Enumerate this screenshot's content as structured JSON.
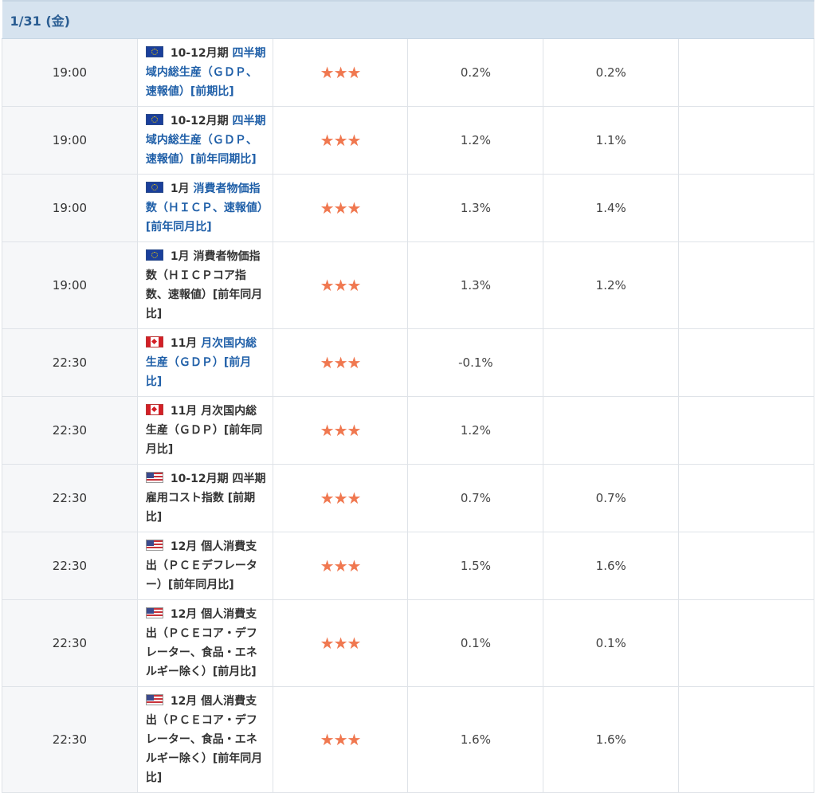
{
  "date_header": "1/31 (金)",
  "importance": "★★★",
  "rows": [
    {
      "time": "19:00",
      "flag": "eu",
      "period": "10-12月期",
      "title": "四半期域内総生産（ＧＤＰ、速報値）[前期比]",
      "linked": true,
      "actual": "0.2%",
      "forecast": "0.2%"
    },
    {
      "time": "19:00",
      "flag": "eu",
      "period": "10-12月期",
      "title": "四半期域内総生産（ＧＤＰ、速報値）[前年同期比]",
      "linked": true,
      "actual": "1.2%",
      "forecast": "1.1%"
    },
    {
      "time": "19:00",
      "flag": "eu",
      "period": "1月",
      "title": "消費者物価指数（ＨＩＣＰ、速報値）[前年同月比]",
      "linked": true,
      "actual": "1.3%",
      "forecast": "1.4%"
    },
    {
      "time": "19:00",
      "flag": "eu",
      "period": "1月",
      "title": "消費者物価指数（ＨＩＣＰコア指数、速報値）[前年同月比]",
      "linked": false,
      "actual": "1.3%",
      "forecast": "1.2%"
    },
    {
      "time": "22:30",
      "flag": "ca",
      "period": "11月",
      "title": "月次国内総生産（ＧＤＰ）[前月比]",
      "linked": true,
      "actual": "-0.1%",
      "forecast": ""
    },
    {
      "time": "22:30",
      "flag": "ca",
      "period": "11月",
      "title": "月次国内総生産（ＧＤＰ）[前年同月比]",
      "linked": false,
      "actual": "1.2%",
      "forecast": ""
    },
    {
      "time": "22:30",
      "flag": "us",
      "period": "10-12月期",
      "title": "四半期雇用コスト指数 [前期比]",
      "linked": false,
      "actual": "0.7%",
      "forecast": "0.7%"
    },
    {
      "time": "22:30",
      "flag": "us",
      "period": "12月",
      "title": "個人消費支出（ＰＣＥデフレーター）[前年同月比]",
      "linked": false,
      "actual": "1.5%",
      "forecast": "1.6%"
    },
    {
      "time": "22:30",
      "flag": "us",
      "period": "12月",
      "title": "個人消費支出（ＰＣＥコア・デフレーター、食品・エネルギー除く）[前月比]",
      "linked": false,
      "actual": "0.1%",
      "forecast": "0.1%"
    },
    {
      "time": "22:30",
      "flag": "us",
      "period": "12月",
      "title": "個人消費支出（ＰＣＥコア・デフレーター、食品・エネルギー除く）[前年同月比]",
      "linked": false,
      "actual": "1.6%",
      "forecast": "1.6%"
    }
  ]
}
